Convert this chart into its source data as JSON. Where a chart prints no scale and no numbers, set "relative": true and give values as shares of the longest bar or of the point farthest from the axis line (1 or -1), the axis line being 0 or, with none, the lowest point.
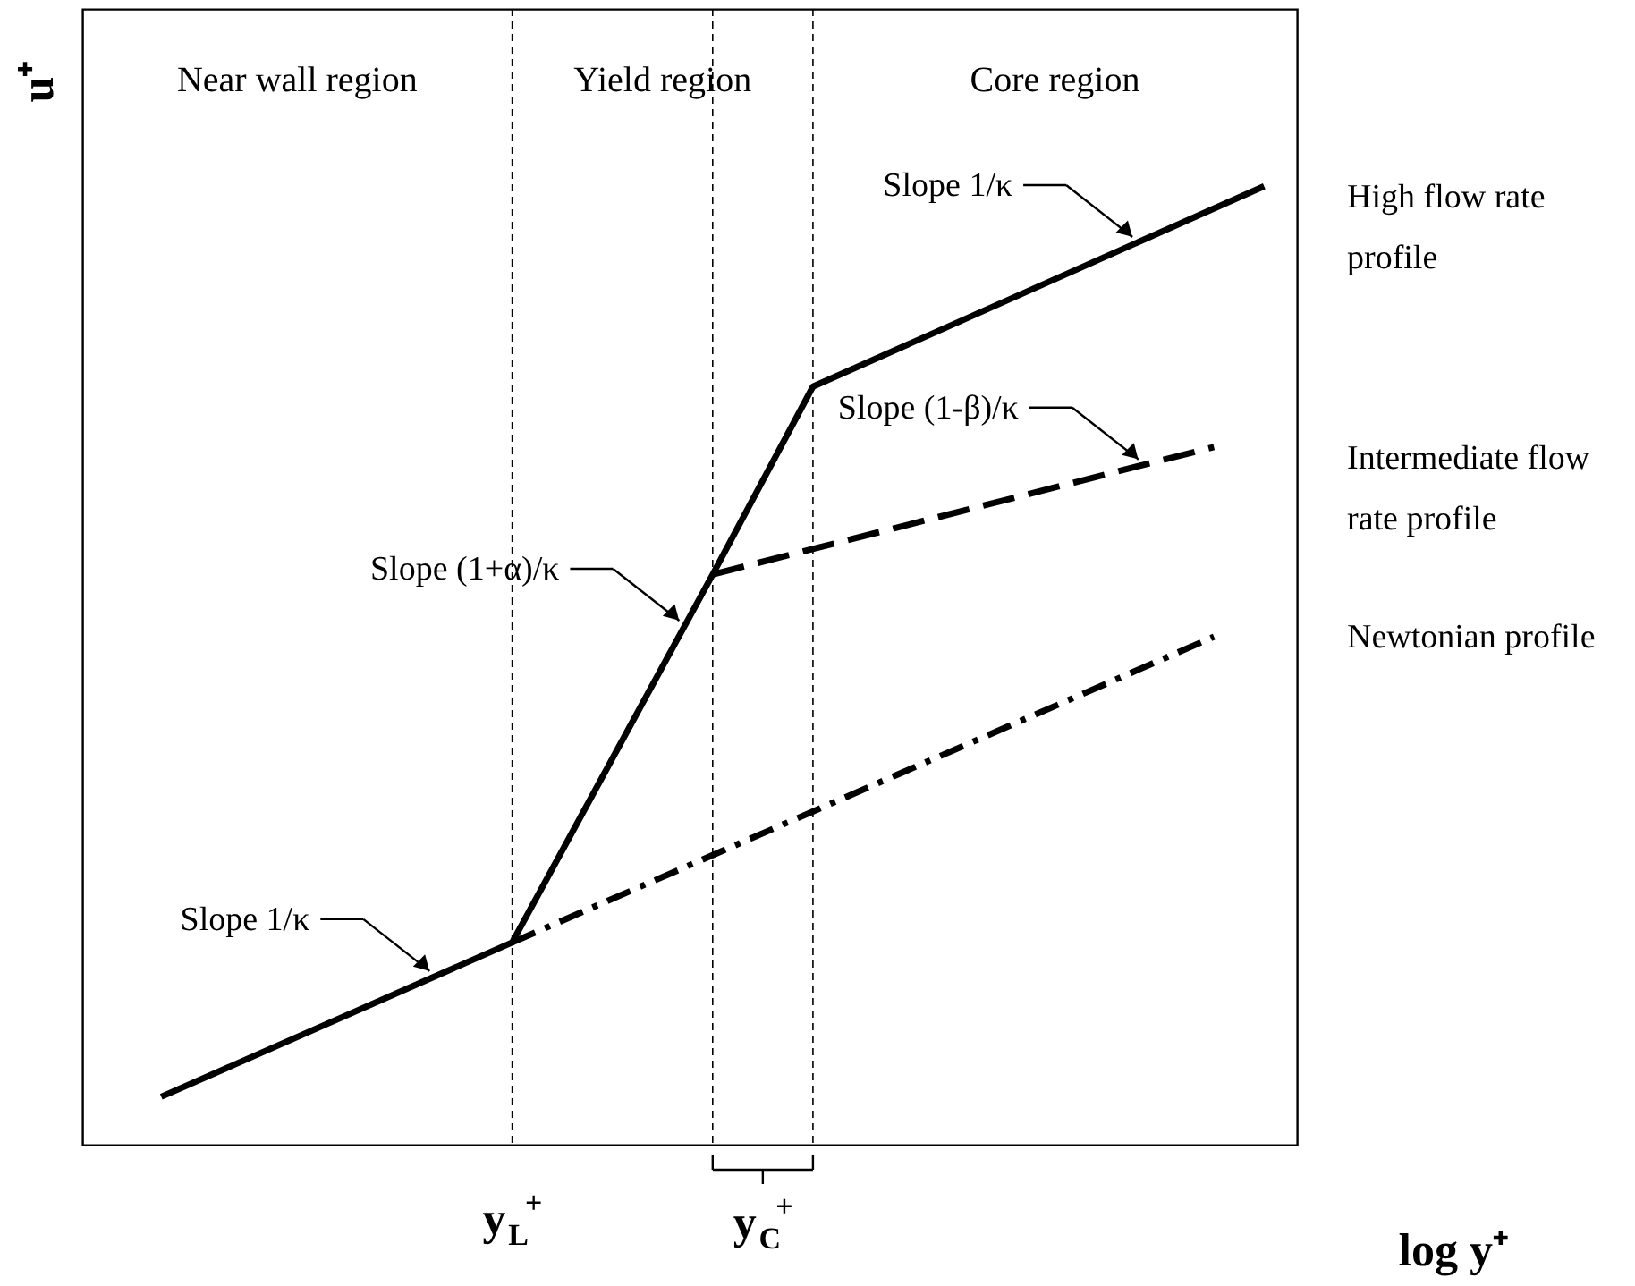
{
  "chart_data": {
    "type": "line",
    "relative": true,
    "xlabel": "log y⁺",
    "ylabel": "u⁺",
    "categories": [
      null,
      null,
      null,
      null,
      null,
      null,
      null,
      null,
      null,
      null,
      null,
      null,
      null,
      null,
      null,
      null,
      null,
      null,
      null,
      null,
      null,
      null,
      null
    ],
    "series": [
      {
        "name": "High flow rate profile",
        "color": "#000000",
        "line_style": "solid",
        "values": [
          0.05,
          null,
          null,
          null,
          null,
          null,
          null,
          0.211,
          null,
          null,
          null,
          0.595,
          null,
          0.791,
          null,
          null,
          null,
          null,
          null,
          null,
          null,
          null,
          1
        ]
      },
      {
        "name": "Intermediate flow rate profile",
        "color": "#000000",
        "line_style": "dashed",
        "values": [
          null,
          null,
          null,
          null,
          null,
          null,
          null,
          null,
          null,
          null,
          null,
          0.595,
          null,
          null,
          null,
          null,
          null,
          null,
          null,
          null,
          null,
          0.728,
          null
        ]
      },
      {
        "name": "Newtonian profile",
        "color": "#000000",
        "line_style": "dashdot",
        "values": [
          null,
          null,
          null,
          null,
          null,
          null,
          null,
          0.211,
          null,
          null,
          null,
          null,
          null,
          null,
          null,
          null,
          null,
          null,
          null,
          null,
          null,
          0.53,
          null
        ]
      }
    ],
    "annotations": [
      "Near wall region",
      "Yield region",
      "Core region",
      "y$_{L}$$^{+}$",
      "y$_{C}$$^{+}$",
      "Slope 1/κ",
      "Slope (1+α)/κ",
      "Slope (1-β)/κ",
      "Slope 1/κ"
    ],
    "grid": "x",
    "marker": "none"
  }
}
